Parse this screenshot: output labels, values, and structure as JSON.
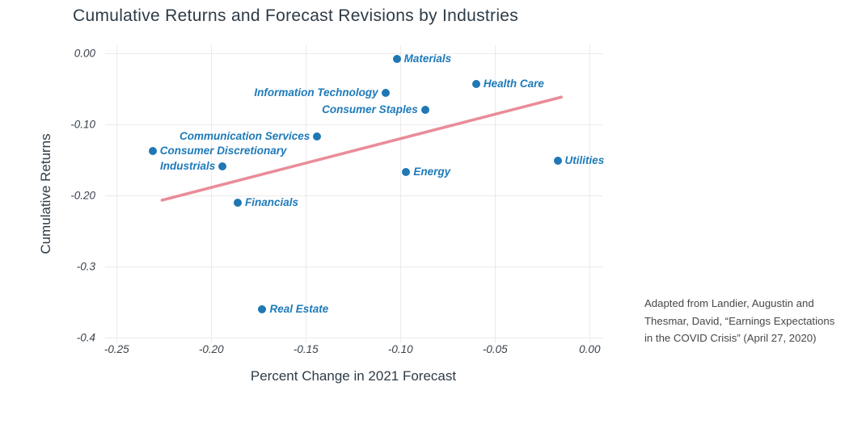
{
  "title": "Cumulative Returns and Forecast Revisions by Industries",
  "annotation": {
    "line1": "Adapted from Landier, Augustin and",
    "line2": "Thesmar, David, “Earnings Expectations",
    "line3": "in the COVID Crisis” (April 27, 2020)"
  },
  "chart_data": {
    "type": "scatter",
    "title": "Cumulative Returns and Forecast Revisions by Industries",
    "xlabel": "Percent Change in 2021 Forecast",
    "ylabel": "Cumulative Returns",
    "xlim": [
      -0.2561,
      0.0067
    ],
    "ylim": [
      -0.4003,
      0.011
    ],
    "grid": true,
    "legend": false,
    "x_ticks": [
      {
        "value": -0.25,
        "label": "-0.25"
      },
      {
        "value": -0.2,
        "label": "-0.20"
      },
      {
        "value": -0.15,
        "label": "-0.15"
      },
      {
        "value": -0.1,
        "label": "-0.10"
      },
      {
        "value": -0.05,
        "label": "-0.05"
      },
      {
        "value": 0.0,
        "label": "0.00"
      }
    ],
    "y_ticks": [
      {
        "value": 0.0,
        "label": "0.00"
      },
      {
        "value": -0.1,
        "label": "-0.10"
      },
      {
        "value": -0.2,
        "label": "-0.20"
      },
      {
        "value": -0.3,
        "label": "-0.3"
      },
      {
        "value": -0.4,
        "label": "-0.4"
      }
    ],
    "points": [
      {
        "name": "Materials",
        "x": -0.102,
        "y": -0.008,
        "label_side": "right"
      },
      {
        "name": "Health Care",
        "x": -0.06,
        "y": -0.044,
        "label_side": "right"
      },
      {
        "name": "Information Technology",
        "x": -0.108,
        "y": -0.056,
        "label_side": "left"
      },
      {
        "name": "Consumer Staples",
        "x": -0.087,
        "y": -0.08,
        "label_side": "left"
      },
      {
        "name": "Communication Services",
        "x": -0.144,
        "y": -0.117,
        "label_side": "left"
      },
      {
        "name": "Consumer Discretionary",
        "x": -0.231,
        "y": -0.138,
        "label_side": "right"
      },
      {
        "name": "Industrials",
        "x": -0.194,
        "y": -0.159,
        "label_side": "left"
      },
      {
        "name": "Energy",
        "x": -0.097,
        "y": -0.167,
        "label_side": "right"
      },
      {
        "name": "Utilities",
        "x": -0.017,
        "y": -0.151,
        "label_side": "right"
      },
      {
        "name": "Financials",
        "x": -0.186,
        "y": -0.211,
        "label_side": "right"
      },
      {
        "name": "Real Estate",
        "x": -0.173,
        "y": -0.36,
        "label_side": "right"
      }
    ],
    "trend_line": {
      "x1": -0.226,
      "y1": -0.207,
      "x2": -0.015,
      "y2": -0.062
    },
    "colors": {
      "point": "#1f77b4",
      "point_label": "#1e7ab9",
      "trend": "#e8808f",
      "grid": "#ebebeb",
      "axis_text": "#39424c",
      "title_text": "#2e3b46"
    }
  }
}
